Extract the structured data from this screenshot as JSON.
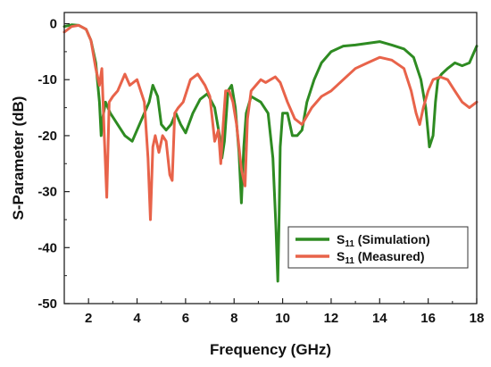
{
  "chart_data": {
    "type": "line",
    "title": "",
    "xlabel": "Frequency (GHz)",
    "ylabel": "S-Parameter (dB)",
    "xlim": [
      1,
      18
    ],
    "ylim": [
      -50,
      2
    ],
    "xticks": [
      2,
      4,
      6,
      8,
      10,
      12,
      14,
      16,
      18
    ],
    "xtick_labels": [
      "2",
      "4",
      "6",
      "8",
      "10",
      "12",
      "14",
      "16",
      "18"
    ],
    "yticks": [
      0,
      -10,
      -20,
      -30,
      -40,
      -50
    ],
    "ytick_labels": [
      "0",
      "-10",
      "-20",
      "-30",
      "-40",
      "-50"
    ],
    "grid": false,
    "legend_position": "bottom-right",
    "series": [
      {
        "name": "S",
        "name_sub": "11",
        "name_suffix": " (Simulation)",
        "color": "#2e8b22",
        "x": [
          1.0,
          1.3,
          1.6,
          1.9,
          2.1,
          2.3,
          2.45,
          2.52,
          2.58,
          2.7,
          2.9,
          3.2,
          3.5,
          3.8,
          4.0,
          4.3,
          4.5,
          4.65,
          4.75,
          4.85,
          5.0,
          5.2,
          5.4,
          5.6,
          5.8,
          6.0,
          6.3,
          6.6,
          6.9,
          7.2,
          7.4,
          7.5,
          7.6,
          7.75,
          7.9,
          8.05,
          8.2,
          8.3,
          8.4,
          8.5,
          8.7,
          8.9,
          9.1,
          9.4,
          9.6,
          9.72,
          9.8,
          9.85,
          9.9,
          10.0,
          10.2,
          10.4,
          10.6,
          10.8,
          11.0,
          11.3,
          11.6,
          12.0,
          12.5,
          13.0,
          13.5,
          14.0,
          14.5,
          15.0,
          15.4,
          15.7,
          15.9,
          16.05,
          16.2,
          16.3,
          16.4,
          16.55,
          16.8,
          17.1,
          17.4,
          17.7,
          18.0
        ],
        "y": [
          -0.5,
          -0.2,
          -0.3,
          -1,
          -3,
          -7,
          -14,
          -20,
          -17,
          -14,
          -16,
          -18,
          -20,
          -21,
          -19,
          -16,
          -14,
          -11,
          -12,
          -13,
          -18,
          -19,
          -18,
          -16,
          -18,
          -19.5,
          -16,
          -13.5,
          -12.5,
          -15,
          -20,
          -24,
          -21,
          -12,
          -11,
          -15,
          -23,
          -32,
          -22,
          -16,
          -13,
          -13.5,
          -14,
          -16,
          -24,
          -36,
          -46,
          -36,
          -22,
          -16,
          -16,
          -20,
          -20,
          -19,
          -14,
          -10,
          -7,
          -5,
          -4,
          -3.8,
          -3.5,
          -3.2,
          -3.8,
          -4.5,
          -6,
          -10,
          -15,
          -22,
          -20,
          -14,
          -10,
          -9,
          -8,
          -7,
          -7.5,
          -7,
          -4
        ]
      },
      {
        "name": "S",
        "name_sub": "11",
        "name_suffix": " (Measured)",
        "color": "#e8634a",
        "x": [
          1.0,
          1.3,
          1.6,
          1.9,
          2.1,
          2.3,
          2.45,
          2.55,
          2.65,
          2.75,
          2.85,
          3.0,
          3.2,
          3.5,
          3.7,
          4.0,
          4.3,
          4.45,
          4.55,
          4.65,
          4.75,
          4.9,
          5.05,
          5.2,
          5.35,
          5.45,
          5.55,
          5.7,
          5.9,
          6.2,
          6.5,
          6.8,
          7.0,
          7.2,
          7.35,
          7.45,
          7.55,
          7.65,
          7.8,
          7.95,
          8.1,
          8.3,
          8.45,
          8.55,
          8.7,
          8.9,
          9.1,
          9.3,
          9.5,
          9.7,
          9.9,
          10.2,
          10.5,
          10.8,
          11.2,
          11.6,
          12.0,
          12.5,
          13.0,
          13.5,
          14.0,
          14.5,
          15.0,
          15.3,
          15.5,
          15.65,
          15.8,
          16.0,
          16.2,
          16.5,
          16.8,
          17.1,
          17.4,
          17.7,
          18.0
        ],
        "y": [
          -1.5,
          -0.5,
          -0.3,
          -1,
          -3,
          -8,
          -11,
          -8,
          -20,
          -31,
          -14,
          -13,
          -12,
          -9,
          -11,
          -10,
          -14,
          -24,
          -35,
          -22,
          -20,
          -23,
          -20,
          -21,
          -27,
          -28,
          -16,
          -15,
          -14,
          -10,
          -9,
          -11,
          -13,
          -21,
          -19,
          -25,
          -18,
          -12,
          -12,
          -14,
          -18,
          -26,
          -29,
          -17,
          -12,
          -11,
          -10,
          -10.5,
          -10,
          -9.5,
          -10.5,
          -14,
          -17,
          -18,
          -15,
          -13,
          -12,
          -10,
          -8,
          -7,
          -6,
          -6.5,
          -8,
          -12,
          -16,
          -18,
          -15,
          -12,
          -10,
          -9.5,
          -10,
          -12,
          -14,
          -15,
          -14
        ]
      }
    ]
  }
}
